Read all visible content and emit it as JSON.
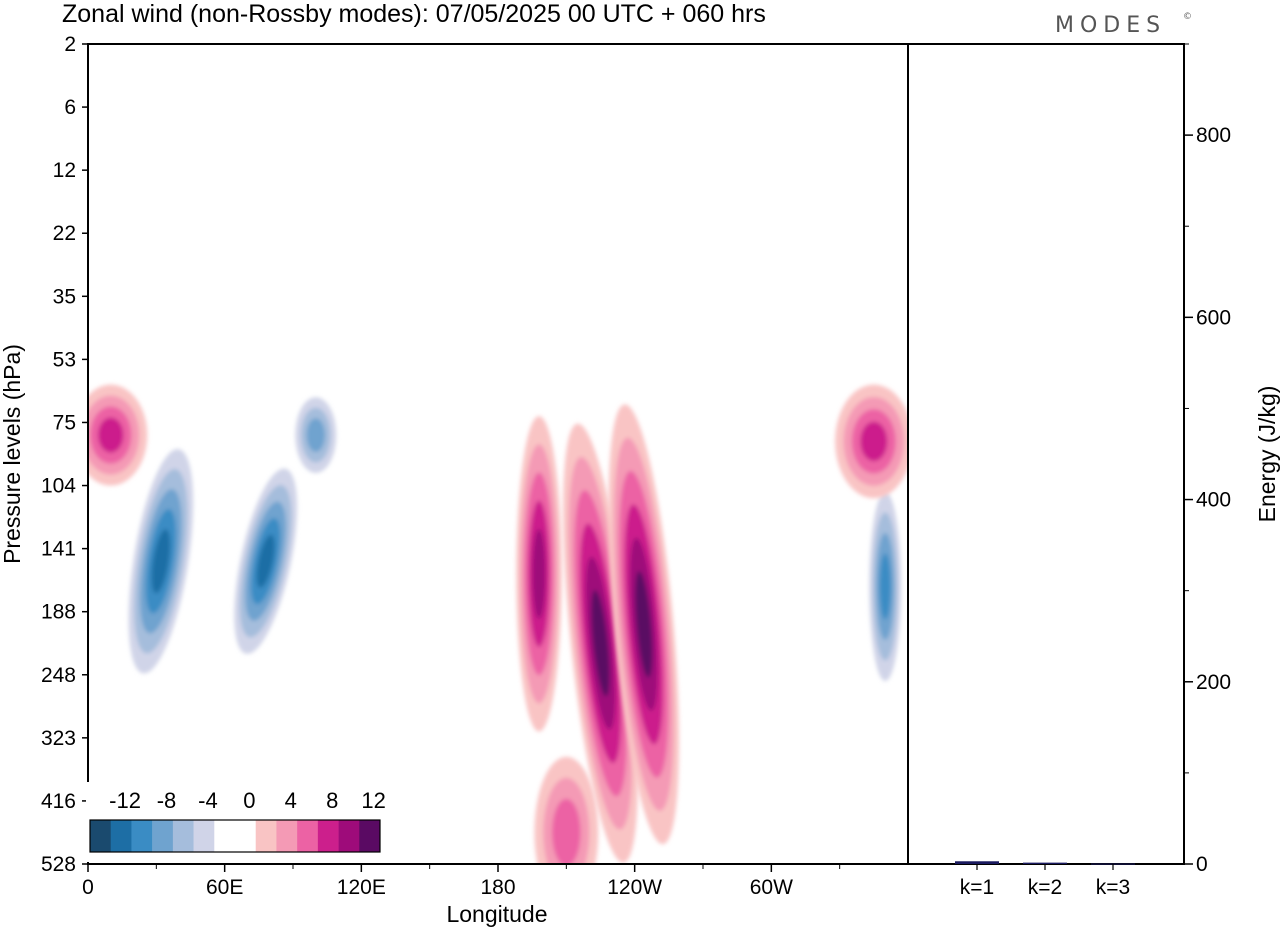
{
  "header": {
    "title": "Zonal wind (non-Rossby modes):  07/05/2025  00 UTC  + 060 hrs",
    "brand": "MODES",
    "brand_mark": "©"
  },
  "chart_data": [
    {
      "type": "heatmap",
      "title": "Zonal wind (non-Rossby modes):  07/05/2025  00 UTC  + 060 hrs",
      "xlabel": "Longitude",
      "ylabel": "Pressure levels (hPa)",
      "x_ticks": [
        "0",
        "60E",
        "120E",
        "180",
        "120W",
        "60W"
      ],
      "x_tick_values": [
        0,
        60,
        120,
        180,
        240,
        300
      ],
      "xlim": [
        0,
        360
      ],
      "y_ticks": [
        "2",
        "6",
        "12",
        "22",
        "35",
        "53",
        "75",
        "104",
        "141",
        "188",
        "248",
        "323",
        "416",
        "528"
      ],
      "y_scale": "pressure levels (top to bottom)",
      "colorbar": {
        "labels": [
          "-12",
          "-8",
          "-4",
          "0",
          "4",
          "8",
          "12"
        ],
        "colors": [
          "#1a4a6e",
          "#1d6ea5",
          "#3a8cc4",
          "#6fa3cf",
          "#a5bddc",
          "#d0d4e8",
          "#ffffff",
          "#ffffff",
          "#f9c4c4",
          "#f49ab5",
          "#ec62a4",
          "#cc1f8c",
          "#9e0b7a",
          "#5a0a63"
        ]
      },
      "features": [
        {
          "kind": "negative",
          "level_index": 4,
          "center_lon": 32,
          "center_level": 8.2,
          "lon_halfwidth": 12,
          "level_halfwidth": 1.8,
          "tilt": 9
        },
        {
          "kind": "negative",
          "level_index": 4,
          "center_lon": 78,
          "center_level": 8.2,
          "lon_halfwidth": 11,
          "level_halfwidth": 1.5,
          "tilt": 12
        },
        {
          "kind": "negative",
          "level_index": 2,
          "center_lon": 100,
          "center_level": 6.2,
          "lon_halfwidth": 9,
          "level_halfwidth": 0.6,
          "tilt": 0
        },
        {
          "kind": "negative",
          "level_index": 3,
          "center_lon": 350,
          "center_level": 8.6,
          "lon_halfwidth": 7,
          "level_halfwidth": 1.5,
          "tilt": 0
        },
        {
          "kind": "positive",
          "level_index": 4,
          "center_lon": 198,
          "center_level": 8.4,
          "lon_halfwidth": 10,
          "level_halfwidth": 2.5,
          "tilt": 0
        },
        {
          "kind": "positive",
          "level_index": 5,
          "center_lon": 225,
          "center_level": 9.5,
          "lon_halfwidth": 13,
          "level_halfwidth": 3.5,
          "tilt": -6
        },
        {
          "kind": "positive",
          "level_index": 6,
          "center_lon": 244,
          "center_level": 9.2,
          "lon_halfwidth": 13,
          "level_halfwidth": 3.5,
          "tilt": -5
        },
        {
          "kind": "positive",
          "level_index": 3,
          "center_lon": 10,
          "center_level": 6.2,
          "lon_halfwidth": 16,
          "level_halfwidth": 0.8,
          "tilt": 0
        },
        {
          "kind": "positive",
          "level_index": 3,
          "center_lon": 345,
          "center_level": 6.3,
          "lon_halfwidth": 17,
          "level_halfwidth": 0.9,
          "tilt": 0
        },
        {
          "kind": "positive",
          "level_index": 2,
          "center_lon": 210,
          "center_level": 12.5,
          "lon_halfwidth": 14,
          "level_halfwidth": 1.2,
          "tilt": 0
        }
      ]
    },
    {
      "type": "bar",
      "categories": [
        "k=1",
        "k=2",
        "k=3"
      ],
      "values": [
        3,
        1.5,
        0.5
      ],
      "ylabel": "Energy (J/kg)",
      "ylim": [
        0,
        900
      ],
      "y_ticks": [
        0,
        200,
        400,
        600,
        800
      ],
      "bar_color": "#1a1a5e"
    }
  ]
}
